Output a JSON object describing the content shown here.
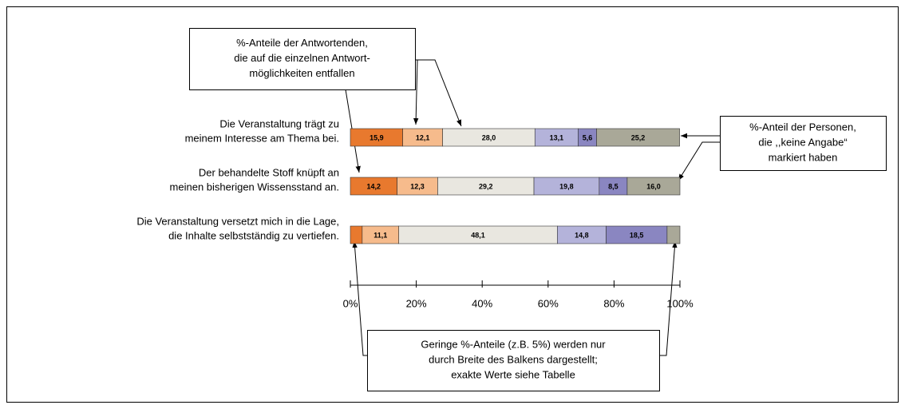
{
  "chart_data": {
    "type": "stacked-bar",
    "categories": [
      [
        "Die Veranstaltung trägt zu",
        "meinem Interesse am Thema bei."
      ],
      [
        "Der behandelte Stoff knüpft an",
        "meinen bisherigen Wissensstand an."
      ],
      [
        "Die Veranstaltung versetzt mich in die Lage,",
        "die Inhalte selbstständig zu vertiefen."
      ]
    ],
    "series": [
      {
        "color": "#e8792e",
        "values": [
          15.9,
          14.2,
          3.6
        ],
        "value_labels": [
          "15,9",
          "14,2",
          null
        ]
      },
      {
        "color": "#f6bb8c",
        "values": [
          12.1,
          12.3,
          11.1
        ],
        "value_labels": [
          "12,1",
          "12,3",
          "11,1"
        ]
      },
      {
        "color": "#e9e7e0",
        "values": [
          28.0,
          29.2,
          48.1
        ],
        "value_labels": [
          "28,0",
          "29,2",
          "48,1"
        ]
      },
      {
        "color": "#b4b3da",
        "values": [
          13.1,
          19.8,
          14.8
        ],
        "value_labels": [
          "13,1",
          "19,8",
          "14,8"
        ]
      },
      {
        "color": "#8a86c1",
        "values": [
          5.6,
          8.5,
          18.5
        ],
        "value_labels": [
          "5,6",
          "8,5",
          "18,5"
        ]
      },
      {
        "color": "#a9a898",
        "values": [
          25.2,
          16.0,
          3.9
        ],
        "value_labels": [
          "25,2",
          "16,0",
          null
        ]
      }
    ],
    "xlim": [
      0,
      100
    ],
    "xticks": [
      {
        "value": 0,
        "label": "0%"
      },
      {
        "value": 20,
        "label": "20%"
      },
      {
        "value": 40,
        "label": "40%"
      },
      {
        "value": 60,
        "label": "60%"
      },
      {
        "value": 80,
        "label": "80%"
      },
      {
        "value": 100,
        "label": "100%"
      }
    ],
    "annotations": [
      {
        "lines": [
          "%-Anteile der Antwortenden,",
          "die auf die einzelnen Antwort-",
          "möglichkeiten entfallen"
        ]
      },
      {
        "lines": [
          "%-Anteil der Personen,",
          "die ,,keine Angabe“",
          "markiert haben"
        ]
      },
      {
        "lines": [
          "Geringe %-Anteile (z.B. 5%) werden nur",
          "durch Breite des Balkens dargestellt;",
          "exakte Werte siehe Tabelle"
        ]
      }
    ]
  }
}
